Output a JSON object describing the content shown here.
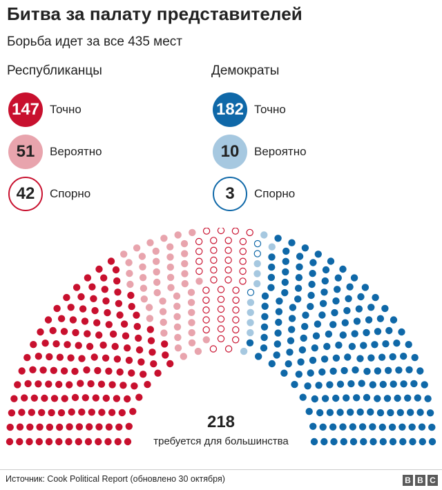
{
  "header": {
    "title": "Битва за палату представителей",
    "subtitle": "Борьба идет за все 435 мест"
  },
  "parties": [
    {
      "name": "Республиканцы",
      "stats": [
        {
          "value": "147",
          "label": "Точно"
        },
        {
          "value": "51",
          "label": "Вероятно"
        },
        {
          "value": "42",
          "label": "Спорно"
        }
      ]
    },
    {
      "name": "Демократы",
      "stats": [
        {
          "value": "182",
          "label": "Точно"
        },
        {
          "value": "10",
          "label": "Вероятно"
        },
        {
          "value": "3",
          "label": "Спорно"
        }
      ]
    }
  ],
  "majority": {
    "value": "218",
    "label": "требуется для большинства"
  },
  "footer": {
    "source": "Источник: Cook Political Report (обновлено 30 октября)",
    "logo": [
      "B",
      "B",
      "C"
    ]
  },
  "colors": {
    "rep_solid": "#c8102e",
    "rep_likely": "#e8a4ad",
    "rep_tossup": "#c8102e",
    "dem_solid": "#0f68a8",
    "dem_likely": "#a6c8e0",
    "dem_tossup": "#0f68a8"
  },
  "chart_data": {
    "type": "parliament",
    "total_seats": 435,
    "majority": 218,
    "categories": [
      {
        "name": "Республиканцы — Точно",
        "value": 147,
        "style": "solid",
        "color": "#c8102e"
      },
      {
        "name": "Республиканцы — Вероятно",
        "value": 51,
        "style": "solid",
        "color": "#e8a4ad"
      },
      {
        "name": "Республиканцы — Спорно",
        "value": 42,
        "style": "outline",
        "color": "#c8102e"
      },
      {
        "name": "Демократы — Спорно",
        "value": 3,
        "style": "outline",
        "color": "#0f68a8"
      },
      {
        "name": "Демократы — Вероятно",
        "value": 10,
        "style": "solid",
        "color": "#a6c8e0"
      },
      {
        "name": "Демократы — Точно",
        "value": 182,
        "style": "solid",
        "color": "#0f68a8"
      }
    ]
  }
}
